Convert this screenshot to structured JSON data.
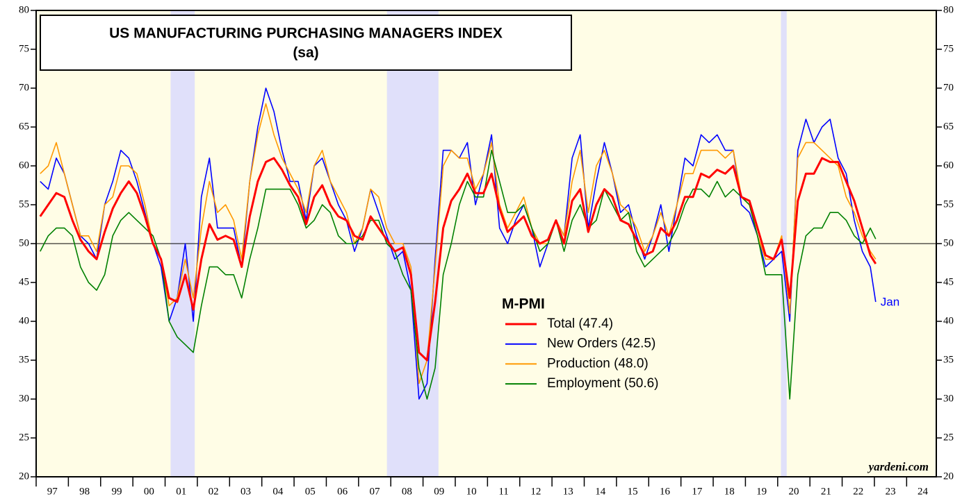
{
  "chart_data": {
    "type": "line",
    "title": "US MANUFACTURING PURCHASING MANAGERS INDEX",
    "subtitle": "(sa)",
    "legend_title": "M-PMI",
    "annotation": "Jan",
    "source": "yardeni.com",
    "reference_line": 50,
    "shaded_periods": [
      [
        2001.17,
        2001.92
      ],
      [
        2007.88,
        2009.48
      ],
      [
        2020.1,
        2020.28
      ]
    ],
    "xlim": [
      1997,
      2024.92
    ],
    "xticks": [
      {
        "value": 1997,
        "label": "97"
      },
      {
        "value": 1998,
        "label": "98"
      },
      {
        "value": 1999,
        "label": "99"
      },
      {
        "value": 2000,
        "label": "00"
      },
      {
        "value": 2001,
        "label": "01"
      },
      {
        "value": 2002,
        "label": "02"
      },
      {
        "value": 2003,
        "label": "03"
      },
      {
        "value": 2004,
        "label": "04"
      },
      {
        "value": 2005,
        "label": "05"
      },
      {
        "value": 2006,
        "label": "06"
      },
      {
        "value": 2007,
        "label": "07"
      },
      {
        "value": 2008,
        "label": "08"
      },
      {
        "value": 2009,
        "label": "09"
      },
      {
        "value": 2010,
        "label": "10"
      },
      {
        "value": 2011,
        "label": "11"
      },
      {
        "value": 2012,
        "label": "12"
      },
      {
        "value": 2013,
        "label": "13"
      },
      {
        "value": 2014,
        "label": "14"
      },
      {
        "value": 2015,
        "label": "15"
      },
      {
        "value": 2016,
        "label": "16"
      },
      {
        "value": 2017,
        "label": "17"
      },
      {
        "value": 2018,
        "label": "18"
      },
      {
        "value": 2019,
        "label": "19"
      },
      {
        "value": 2020,
        "label": "20"
      },
      {
        "value": 2021,
        "label": "21"
      },
      {
        "value": 2022,
        "label": "22"
      },
      {
        "value": 2023,
        "label": "23"
      },
      {
        "value": 2024,
        "label": "24"
      }
    ],
    "ylim": [
      20,
      80
    ],
    "yticks": [
      20,
      25,
      30,
      35,
      40,
      45,
      50,
      55,
      60,
      65,
      70,
      75,
      80
    ],
    "x": [
      1997.125,
      1997.375,
      1997.625,
      1997.875,
      1998.125,
      1998.375,
      1998.625,
      1998.875,
      1999.125,
      1999.375,
      1999.625,
      1999.875,
      2000.125,
      2000.375,
      2000.625,
      2000.875,
      2001.125,
      2001.375,
      2001.625,
      2001.875,
      2002.125,
      2002.375,
      2002.625,
      2002.875,
      2003.125,
      2003.375,
      2003.625,
      2003.875,
      2004.125,
      2004.375,
      2004.625,
      2004.875,
      2005.125,
      2005.375,
      2005.625,
      2005.875,
      2006.125,
      2006.375,
      2006.625,
      2006.875,
      2007.125,
      2007.375,
      2007.625,
      2007.875,
      2008.125,
      2008.375,
      2008.625,
      2008.875,
      2009.125,
      2009.375,
      2009.625,
      2009.875,
      2010.125,
      2010.375,
      2010.625,
      2010.875,
      2011.125,
      2011.375,
      2011.625,
      2011.875,
      2012.125,
      2012.375,
      2012.625,
      2012.875,
      2013.125,
      2013.375,
      2013.625,
      2013.875,
      2014.125,
      2014.375,
      2014.625,
      2014.875,
      2015.125,
      2015.375,
      2015.625,
      2015.875,
      2016.125,
      2016.375,
      2016.625,
      2016.875,
      2017.125,
      2017.375,
      2017.625,
      2017.875,
      2018.125,
      2018.375,
      2018.625,
      2018.875,
      2019.125,
      2019.375,
      2019.625,
      2019.875,
      2020.125,
      2020.375,
      2020.625,
      2020.875,
      2021.125,
      2021.375,
      2021.625,
      2021.875,
      2022.125,
      2022.375,
      2022.625,
      2022.875,
      2023.04
    ],
    "series": [
      {
        "name": "Total (47.4)",
        "color": "#ff0000",
        "width": 3,
        "values": [
          53.5,
          55,
          56.5,
          56,
          53,
          50.5,
          49,
          48,
          51.5,
          54.5,
          56.5,
          58,
          56.5,
          53.5,
          50,
          48,
          43,
          42.5,
          46,
          41.5,
          48,
          52.5,
          50.5,
          51,
          50.5,
          47,
          53.5,
          58,
          60.5,
          61,
          59.5,
          57.5,
          56,
          52.5,
          56,
          57.5,
          55,
          53.5,
          53,
          51,
          50.5,
          53.5,
          52,
          50.5,
          49,
          49.5,
          46,
          36,
          35,
          42.5,
          52,
          55.5,
          57,
          59,
          56.5,
          56.5,
          59,
          54.5,
          51.5,
          52.5,
          53.5,
          51,
          50,
          50.5,
          53,
          50,
          55.5,
          57,
          51.5,
          55,
          57,
          56,
          53,
          52.5,
          50.5,
          48.5,
          49,
          52,
          51,
          53,
          56,
          56,
          59,
          58.5,
          59.5,
          59,
          60,
          56,
          55.5,
          52,
          48.5,
          48,
          50.5,
          43,
          55.5,
          59,
          59,
          61,
          60.5,
          60.5,
          58,
          55.5,
          52,
          48.5,
          47.4
        ]
      },
      {
        "name": "New Orders (42.5)",
        "color": "#0000ff",
        "width": 1.6,
        "values": [
          58,
          57,
          61,
          59,
          55,
          51,
          50,
          48,
          55,
          58,
          62,
          61,
          58,
          54,
          50,
          47,
          40,
          43,
          50,
          40,
          56,
          61,
          52,
          52,
          52,
          47,
          58,
          65,
          70,
          67,
          62,
          58,
          58,
          53,
          60,
          61,
          58,
          55,
          53,
          49,
          52,
          57,
          54,
          51,
          48,
          49,
          44,
          30,
          32,
          48,
          62,
          62,
          61,
          63,
          55,
          59,
          64,
          52,
          50,
          53,
          55,
          52,
          47,
          50,
          53,
          51,
          61,
          64,
          52,
          58,
          63,
          59,
          54,
          55,
          51,
          48,
          51,
          55,
          49,
          55,
          61,
          60,
          64,
          63,
          64,
          62,
          62,
          55,
          54,
          51,
          47,
          48,
          49,
          40,
          62,
          66,
          63,
          65,
          66,
          61,
          59,
          53,
          49,
          47,
          42.5
        ]
      },
      {
        "name": "Production (48.0)",
        "color": "#ff9900",
        "width": 1.6,
        "values": [
          59,
          60,
          63,
          59,
          55,
          51,
          51,
          49,
          55,
          56,
          60,
          60,
          59,
          55,
          50,
          48,
          42,
          43,
          48,
          43,
          52,
          58,
          54,
          55,
          53,
          48,
          58,
          64,
          68,
          64,
          61,
          59,
          57,
          54,
          60,
          62,
          58,
          56,
          54,
          50,
          52,
          57,
          56,
          52,
          50,
          50,
          47,
          32,
          35,
          47,
          60,
          62,
          61,
          61,
          57,
          59,
          63,
          55,
          52,
          54,
          56,
          52,
          50,
          50,
          53,
          51,
          58,
          62,
          54,
          60,
          62,
          59,
          55,
          54,
          52,
          49,
          51,
          54,
          51,
          55,
          59,
          59,
          62,
          62,
          62,
          61,
          62,
          56,
          55,
          51,
          48,
          48,
          51,
          41,
          61,
          63,
          63,
          62,
          61,
          60,
          56,
          54,
          51,
          49,
          48.0
        ]
      },
      {
        "name": "Employment (50.6)",
        "color": "#008000",
        "width": 1.6,
        "values": [
          49,
          51,
          52,
          52,
          51,
          47,
          45,
          44,
          46,
          51,
          53,
          54,
          53,
          52,
          51,
          48,
          40,
          38,
          37,
          36,
          42,
          47,
          47,
          46,
          46,
          43,
          48,
          52,
          57,
          57,
          57,
          57,
          55,
          52,
          53,
          55,
          54,
          51,
          50,
          50,
          51,
          53,
          53,
          50,
          49,
          46,
          44,
          34,
          30,
          34,
          46,
          50,
          55,
          58,
          56,
          56,
          62,
          58,
          54,
          54,
          55,
          52,
          49,
          50,
          53,
          49,
          53,
          55,
          52,
          53,
          57,
          55,
          53,
          54,
          49,
          47,
          48,
          49,
          50,
          52,
          55,
          57,
          57,
          56,
          58,
          56,
          57,
          56,
          55,
          51,
          46,
          46,
          46,
          30,
          46,
          51,
          52,
          52,
          54,
          54,
          53,
          51,
          50,
          52,
          50.6
        ]
      }
    ]
  }
}
